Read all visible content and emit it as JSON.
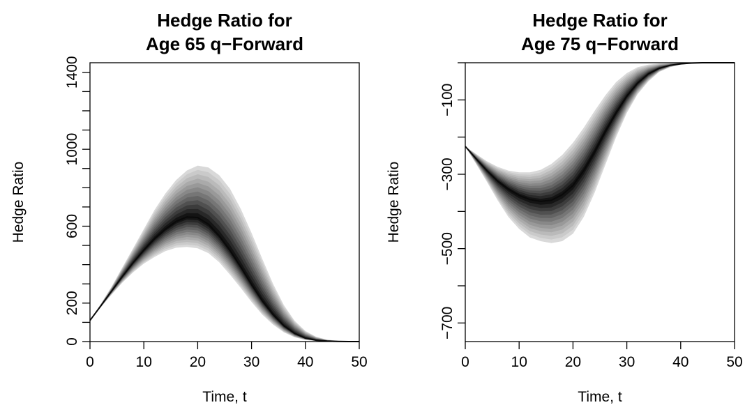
{
  "chart_data": [
    {
      "type": "area",
      "subtype": "fan-chart",
      "title": [
        "Hedge Ratio for",
        "Age 65 q−Forward"
      ],
      "xlabel": "Time, t",
      "ylabel": "Hedge Ratio",
      "xlim": [
        0,
        50
      ],
      "ylim": [
        0,
        1450
      ],
      "xticks": [
        0,
        10,
        20,
        30,
        40,
        50
      ],
      "yticks": [
        0,
        200,
        600,
        1000,
        1400
      ],
      "ytick_labels": [
        "0",
        "200",
        "600",
        "1000",
        "1400"
      ],
      "grid": false,
      "x": [
        0,
        2,
        4,
        6,
        8,
        10,
        12,
        14,
        16,
        18,
        20,
        22,
        24,
        26,
        28,
        30,
        32,
        34,
        36,
        38,
        40,
        42,
        44,
        46,
        48,
        50
      ],
      "median": [
        110,
        185,
        262,
        338,
        410,
        475,
        535,
        585,
        625,
        648,
        645,
        610,
        550,
        475,
        388,
        297,
        212,
        140,
        82,
        42,
        18,
        7,
        3,
        1,
        0,
        0
      ],
      "lower_band": [
        110,
        178,
        244,
        306,
        360,
        405,
        440,
        470,
        488,
        492,
        485,
        460,
        412,
        348,
        278,
        206,
        140,
        88,
        48,
        22,
        8,
        3,
        1,
        0,
        0,
        0
      ],
      "upper_band": [
        110,
        195,
        285,
        385,
        485,
        585,
        685,
        770,
        840,
        890,
        915,
        905,
        865,
        795,
        690,
        565,
        430,
        300,
        190,
        108,
        55,
        25,
        10,
        4,
        1,
        0
      ],
      "band_colors": [
        "#d9d9d9",
        "#cacaca",
        "#bababa",
        "#aaaaaa",
        "#999999",
        "#888888",
        "#767676",
        "#646464",
        "#505050",
        "#3c3c3c",
        "#282828",
        "#141414"
      ]
    },
    {
      "type": "area",
      "subtype": "fan-chart",
      "title": [
        "Hedge Ratio for",
        "Age 75 q−Forward"
      ],
      "xlabel": "Time, t",
      "ylabel": "Hedge Ratio",
      "xlim": [
        0,
        50
      ],
      "ylim": [
        -750,
        0
      ],
      "xticks": [
        0,
        10,
        20,
        30,
        40,
        50
      ],
      "yticks": [
        -100,
        -300,
        -500,
        -700
      ],
      "ytick_labels": [
        "−100",
        "−300",
        "−500",
        "−700"
      ],
      "grid": false,
      "x": [
        0,
        2,
        4,
        6,
        8,
        10,
        12,
        14,
        16,
        18,
        20,
        22,
        24,
        26,
        28,
        30,
        32,
        34,
        36,
        38,
        40,
        42,
        44,
        46,
        48,
        50
      ],
      "median": [
        -225,
        -258,
        -290,
        -318,
        -340,
        -357,
        -368,
        -373,
        -370,
        -355,
        -330,
        -290,
        -240,
        -185,
        -135,
        -90,
        -55,
        -30,
        -15,
        -7,
        -3,
        -1,
        0,
        0,
        0,
        0
      ],
      "lower_band": [
        -225,
        -272,
        -320,
        -370,
        -415,
        -447,
        -470,
        -480,
        -485,
        -480,
        -460,
        -415,
        -350,
        -275,
        -200,
        -135,
        -85,
        -50,
        -25,
        -12,
        -5,
        -2,
        -1,
        0,
        0,
        0
      ],
      "upper_band": [
        -225,
        -245,
        -265,
        -280,
        -290,
        -295,
        -295,
        -288,
        -272,
        -248,
        -215,
        -175,
        -130,
        -88,
        -52,
        -28,
        -12,
        -5,
        -2,
        -1,
        0,
        0,
        0,
        0,
        0,
        0
      ],
      "band_colors": [
        "#d9d9d9",
        "#cacaca",
        "#bababa",
        "#aaaaaa",
        "#999999",
        "#888888",
        "#767676",
        "#646464",
        "#505050",
        "#3c3c3c",
        "#282828",
        "#141414"
      ]
    }
  ]
}
